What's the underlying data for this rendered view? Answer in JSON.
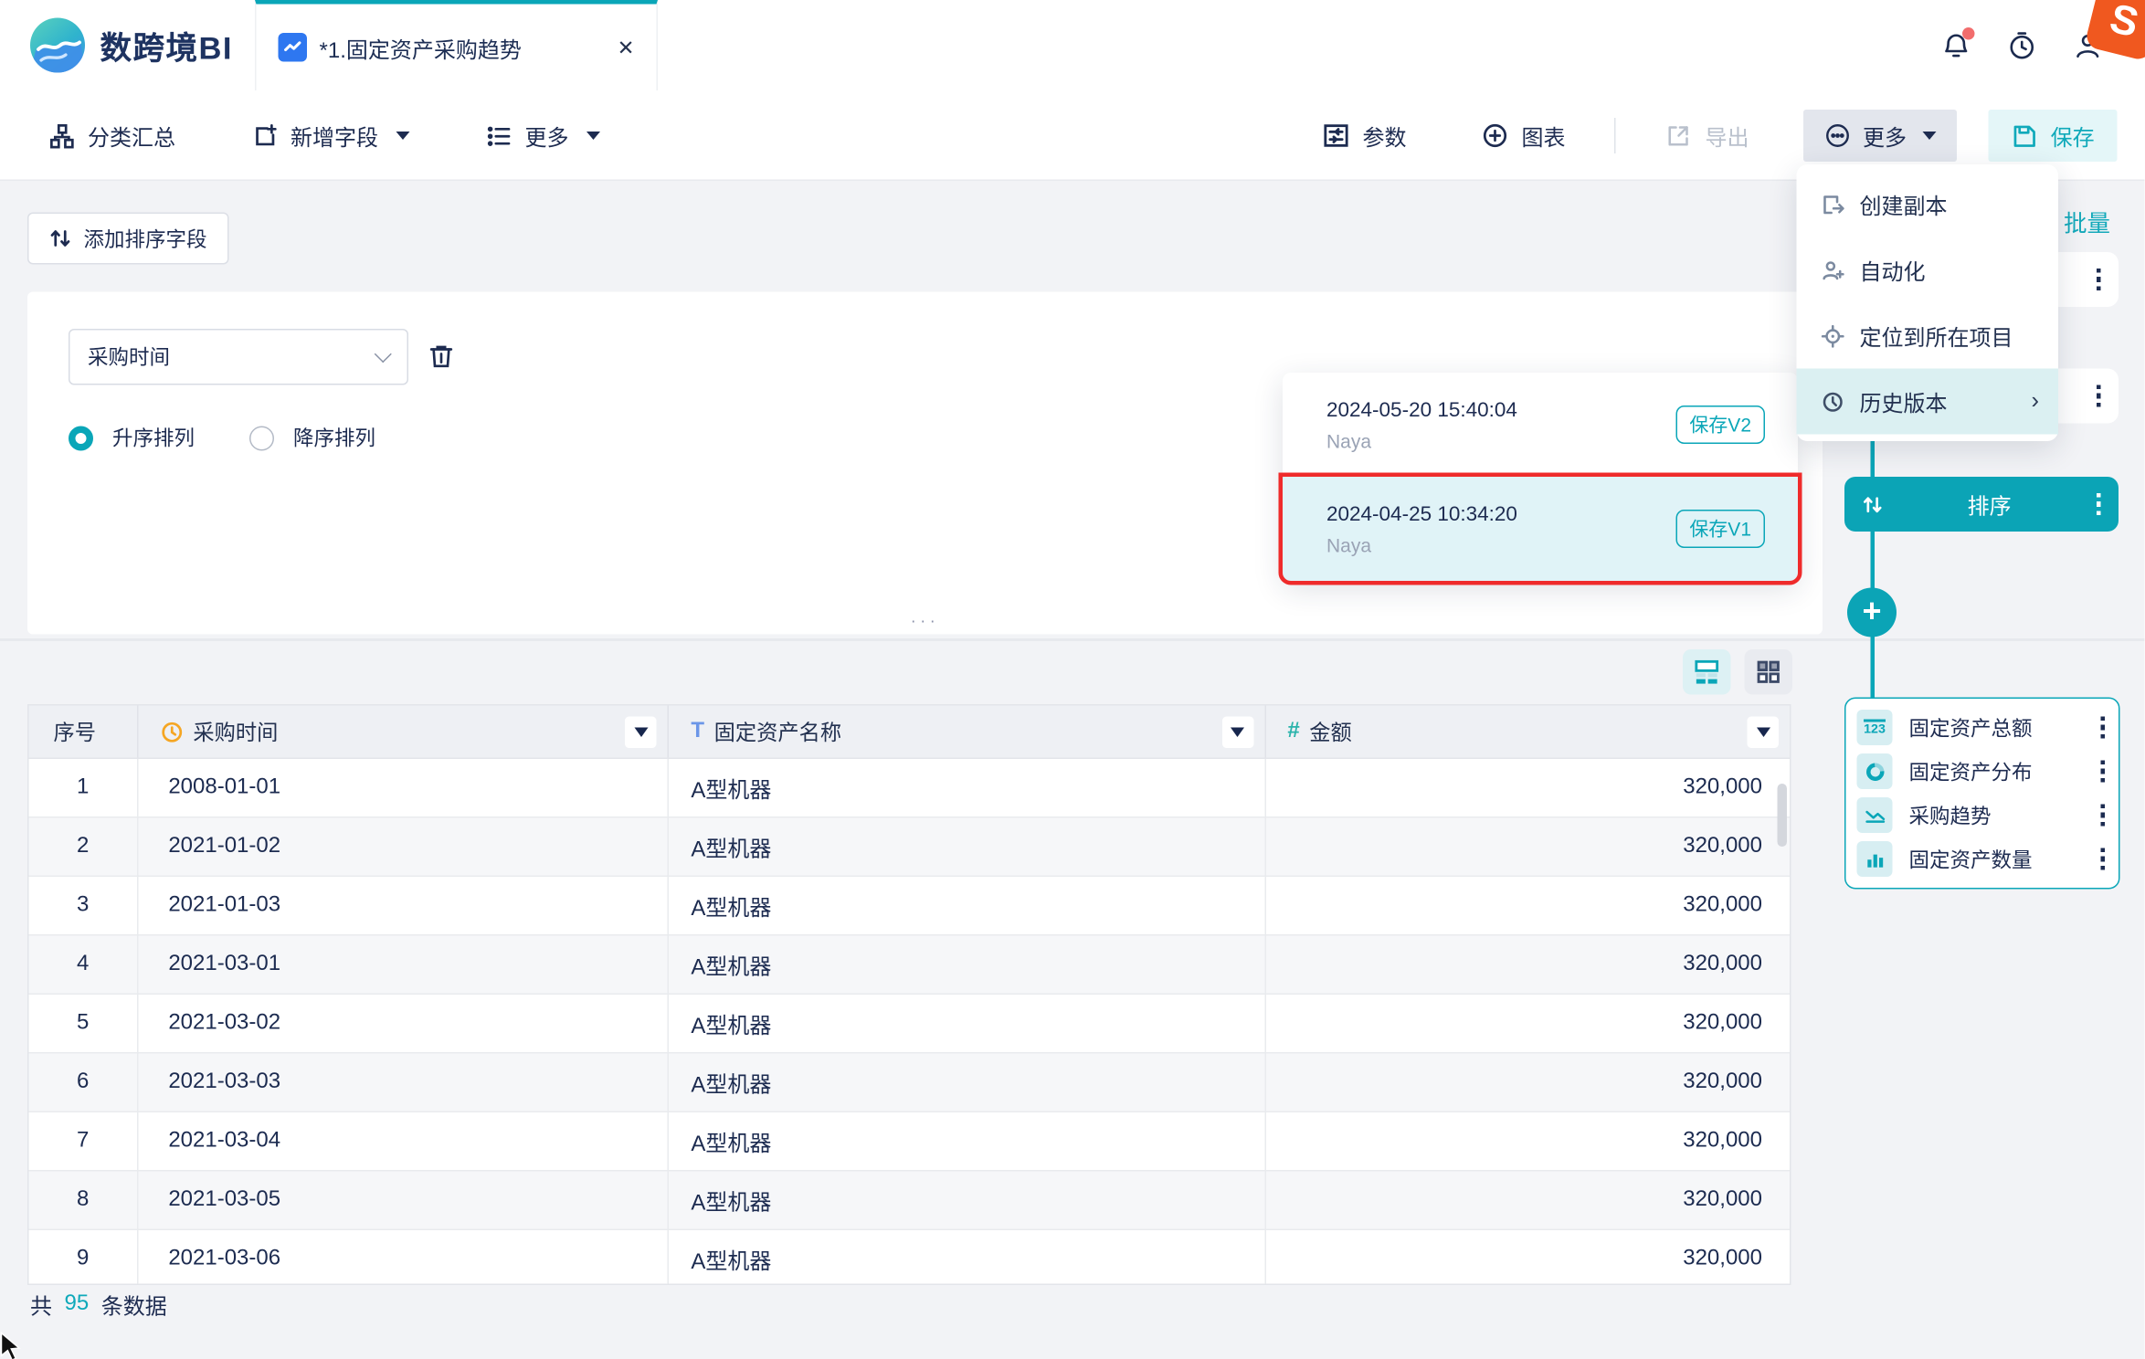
{
  "topbar": {
    "logo_text": "数跨境BI",
    "tab_title": "*1.固定资产采购趋势",
    "close_glyph": "✕",
    "sticker_letter": "S"
  },
  "toolbar": {
    "classify": "分类汇总",
    "add_field": "新增字段",
    "more_left": "更多",
    "params": "参数",
    "chart": "图表",
    "export": "导出",
    "more_right": "更多",
    "save": "保存"
  },
  "menu": {
    "items": [
      {
        "label": "创建副本",
        "icon": "copy-icon"
      },
      {
        "label": "自动化",
        "icon": "automation-icon"
      },
      {
        "label": "定位到所在项目",
        "icon": "locate-icon"
      },
      {
        "label": "历史版本",
        "icon": "history-icon",
        "active": true,
        "arrow": "›"
      }
    ]
  },
  "history": {
    "versions": [
      {
        "time": "2024-05-20 15:40:04",
        "author": "Naya",
        "badge": "保存V2",
        "selected": false
      },
      {
        "time": "2024-04-25 10:34:20",
        "author": "Naya",
        "badge": "保存V1",
        "selected": true
      }
    ]
  },
  "sort": {
    "add_button": "添加排序字段",
    "field_value": "采购时间",
    "asc_label": "升序排列",
    "desc_label": "降序排列",
    "selected": "asc",
    "handle": "···"
  },
  "flow": {
    "batch_label": "批量",
    "sort_node_label": "排序",
    "plus_glyph": "+",
    "nodes": [
      {
        "icon": "numeric-123-icon",
        "label": "固定资产总额"
      },
      {
        "icon": "pie-chart-icon",
        "label": "固定资产分布"
      },
      {
        "icon": "line-chart-icon",
        "label": "采购趋势"
      },
      {
        "icon": "bar-chart-icon",
        "label": "固定资产数量"
      }
    ]
  },
  "table": {
    "columns": [
      {
        "label": "序号",
        "icon": null,
        "filter": false
      },
      {
        "label": "采购时间",
        "icon": "clock-icon",
        "filter": true
      },
      {
        "label": "固定资产名称",
        "icon": "text-field-icon",
        "filter": true
      },
      {
        "label": "金额",
        "icon": "number-field-icon",
        "filter": true
      }
    ],
    "rows": [
      {
        "no": "1",
        "date": "2008-01-01",
        "name": "A型机器",
        "amount": "320,000"
      },
      {
        "no": "2",
        "date": "2021-01-02",
        "name": "A型机器",
        "amount": "320,000"
      },
      {
        "no": "3",
        "date": "2021-01-03",
        "name": "A型机器",
        "amount": "320,000"
      },
      {
        "no": "4",
        "date": "2021-03-01",
        "name": "A型机器",
        "amount": "320,000"
      },
      {
        "no": "5",
        "date": "2021-03-02",
        "name": "A型机器",
        "amount": "320,000"
      },
      {
        "no": "6",
        "date": "2021-03-03",
        "name": "A型机器",
        "amount": "320,000"
      },
      {
        "no": "7",
        "date": "2021-03-04",
        "name": "A型机器",
        "amount": "320,000"
      },
      {
        "no": "8",
        "date": "2021-03-05",
        "name": "A型机器",
        "amount": "320,000"
      },
      {
        "no": "9",
        "date": "2021-03-06",
        "name": "A型机器",
        "amount": "320,000"
      }
    ]
  },
  "footer": {
    "prefix": "共",
    "count": "95",
    "suffix": "条数据"
  },
  "colors": {
    "primary_teal": "#0aa6b8",
    "navy_text": "#1c2b50",
    "selection_red": "#ef2b2b",
    "clock_icon": "#f5a623",
    "text_field_icon": "#6b96e8",
    "number_field_icon": "#2ab3ab",
    "tab_chart_icon_bg": "#2e77f0",
    "sticker_orange": "#f0581f"
  }
}
